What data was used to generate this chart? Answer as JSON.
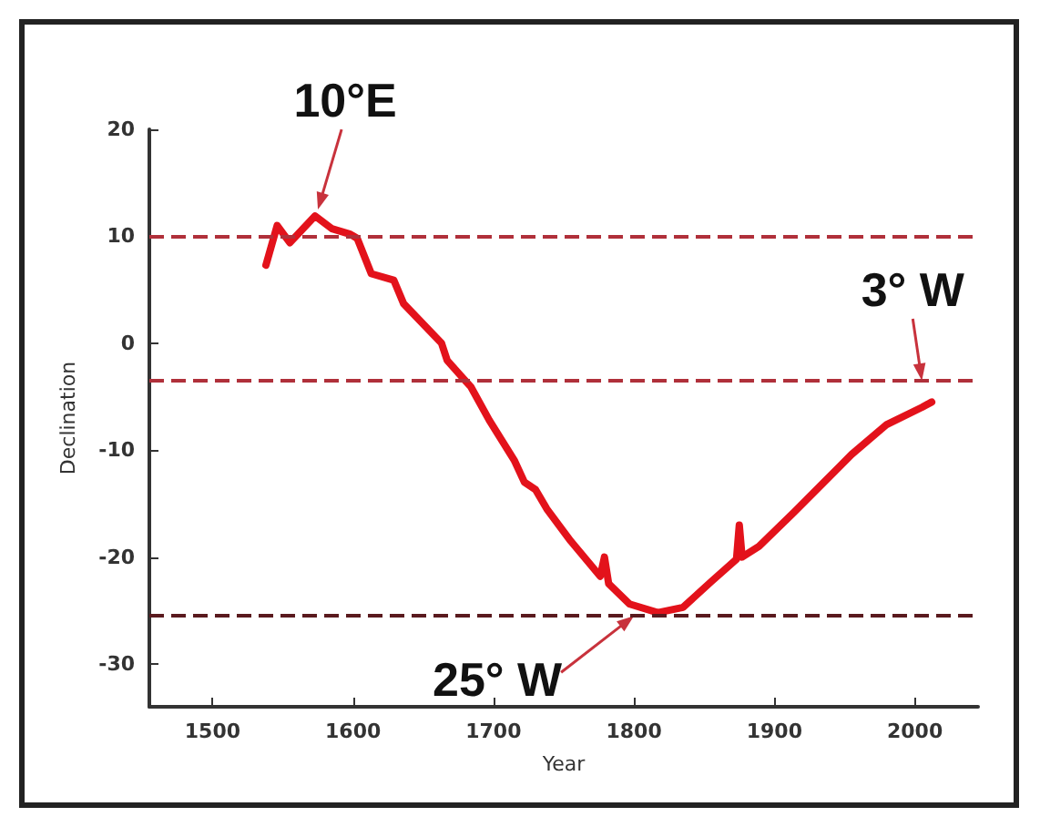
{
  "chart_data": {
    "type": "line",
    "xlabel": "Year",
    "ylabel": "Declination",
    "x": [
      1538,
      1546,
      1555,
      1573,
      1585,
      1598,
      1603,
      1613,
      1629,
      1636,
      1663,
      1667,
      1684,
      1697,
      1715,
      1722,
      1730,
      1738,
      1755,
      1776,
      1779,
      1782,
      1797,
      1817,
      1835,
      1855,
      1873,
      1875,
      1877,
      1889,
      1914,
      1930,
      1955,
      1980,
      2005,
      2012
    ],
    "series": [
      {
        "color": "#e3121b",
        "values": [
          7.3,
          11,
          9.4,
          11.9,
          10.7,
          10.2,
          9.8,
          6.5,
          5.9,
          3.7,
          0,
          -1.6,
          -4.1,
          -7.2,
          -11,
          -13,
          -13.7,
          -15.5,
          -18.5,
          -21.8,
          -20,
          -22.5,
          -24.4,
          -25.2,
          -24.7,
          -22.3,
          -20.2,
          -17,
          -20,
          -19,
          -15.8,
          -13.7,
          -10.4,
          -7.6,
          -6,
          -5.5
        ]
      }
    ],
    "xlim": [
      1455,
      2045
    ],
    "xticks": [
      1500,
      1600,
      1700,
      1800,
      1900,
      2000
    ],
    "ylim": [
      -34,
      20
    ],
    "yticks": [
      -30,
      -20,
      -10,
      0,
      10,
      20
    ],
    "ref_lines": [
      {
        "axis": "y",
        "value": 10,
        "color": "#b0303a",
        "line_style": "dashed"
      },
      {
        "axis": "y",
        "value": -3.5,
        "color": "#b0303a",
        "line_style": "dashed"
      },
      {
        "axis": "y",
        "value": -25.5,
        "color": "#5a1a1e",
        "line_style": "dashed"
      }
    ],
    "annotations": [
      {
        "text": "10°E",
        "x": 1575,
        "y": 12.5
      },
      {
        "text": "3° W",
        "x": 2005,
        "y": -3.5
      },
      {
        "text": "25° W",
        "x": 1800,
        "y": -25.5
      }
    ],
    "grid": false,
    "marker": "none",
    "line_style": "solid"
  }
}
